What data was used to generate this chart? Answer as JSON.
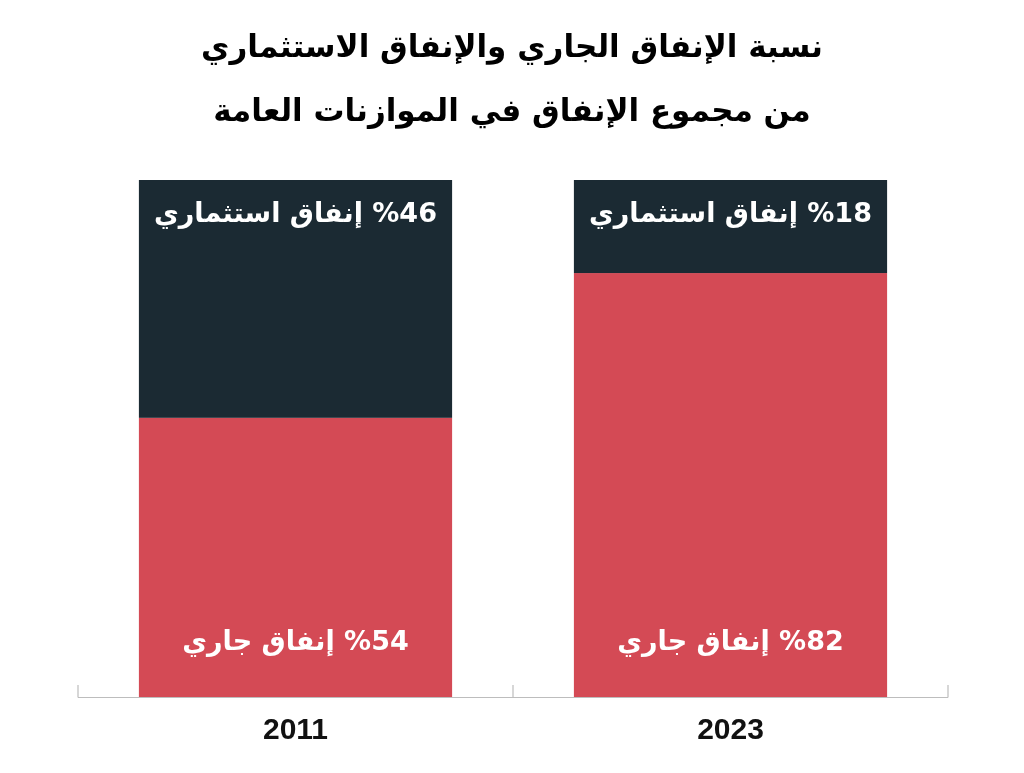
{
  "chart_data": {
    "type": "bar",
    "stacked": true,
    "title": "نسبة الإنفاق الجاري والإنفاق الاستثماري\nمن مجموع الإنفاق في الموازنات العامة",
    "categories": [
      "2011",
      "2023"
    ],
    "series": [
      {
        "color": "#d44a55",
        "values": [
          54,
          82
        ],
        "value_labels": [
          "%54 إنفاق جاري",
          "%82 إنفاق جاري"
        ]
      },
      {
        "color": "#1b2a33",
        "values": [
          46,
          18
        ],
        "value_labels": [
          "%46 إنفاق استثماري",
          "%18 إنفاق استثماري"
        ]
      }
    ]
  }
}
